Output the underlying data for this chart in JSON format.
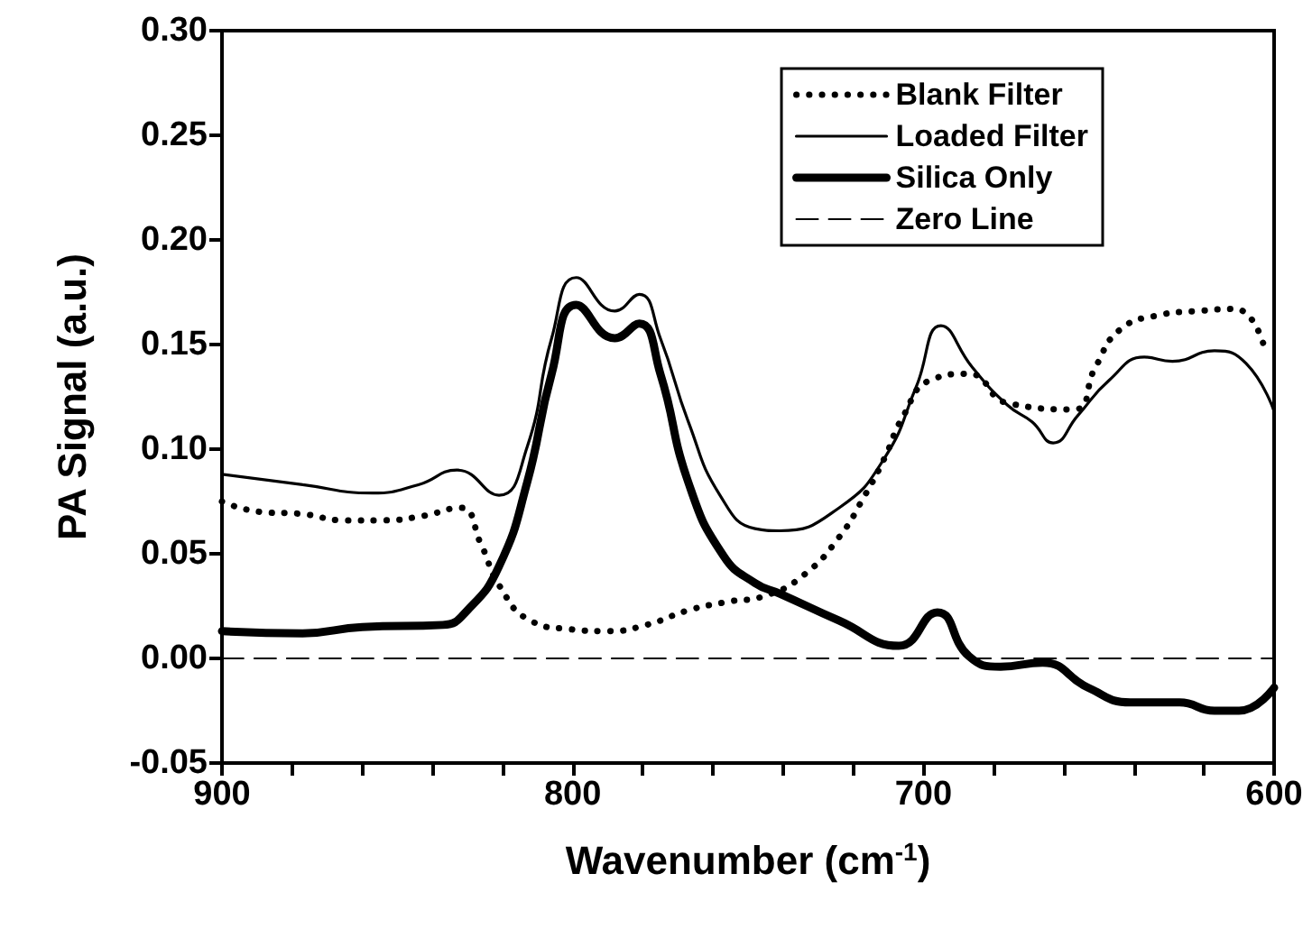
{
  "chart_data": {
    "type": "line",
    "xlabel": "Wavenumber (cm$^{-1}$)",
    "ylabel": "PA Signal (a.u.)",
    "xlim": [
      900,
      600
    ],
    "ylim": [
      -0.05,
      0.3
    ],
    "xticks": [
      900,
      {
        "value": 880,
        "label": null
      },
      {
        "value": 860,
        "label": null
      },
      {
        "value": 840,
        "label": null
      },
      {
        "value": 820,
        "label": null
      },
      800,
      {
        "value": 780,
        "label": null
      },
      {
        "value": 760,
        "label": null
      },
      {
        "value": 740,
        "label": null
      },
      {
        "value": 720,
        "label": null
      },
      700,
      {
        "value": 680,
        "label": null
      },
      {
        "value": 660,
        "label": null
      },
      {
        "value": 640,
        "label": null
      },
      {
        "value": 620,
        "label": null
      },
      600
    ],
    "yticks": [
      {
        "value": -0.05,
        "label": "-0.05"
      },
      {
        "value": 0,
        "label": "0.00"
      },
      {
        "value": 0.05,
        "label": "0.05"
      },
      {
        "value": 0.1,
        "label": "0.10"
      },
      {
        "value": 0.15,
        "label": "0.15"
      },
      {
        "value": 0.2,
        "label": "0.20"
      },
      {
        "value": 0.25,
        "label": "0.25"
      },
      {
        "value": 0.3,
        "label": "0.30"
      }
    ],
    "grid": false,
    "legend": "top right",
    "marker": "none",
    "series": [
      {
        "name": "Blank Filter",
        "color": "#000000",
        "line_style": "dotted",
        "x": [
          900,
          889,
          877,
          865,
          854,
          843,
          832,
          826,
          821,
          812,
          801,
          790,
          779,
          767,
          756,
          745,
          734,
          724,
          717,
          711,
          706,
          698,
          687,
          676,
          657,
          651,
          644,
          633,
          622,
          611,
          603
        ],
        "values": [
          0.075,
          0.07,
          0.069,
          0.066,
          0.066,
          0.068,
          0.072,
          0.054,
          0.035,
          0.018,
          0.014,
          0.013,
          0.016,
          0.023,
          0.027,
          0.03,
          0.04,
          0.058,
          0.077,
          0.096,
          0.115,
          0.133,
          0.136,
          0.122,
          0.119,
          0.139,
          0.157,
          0.164,
          0.166,
          0.167,
          0.15
        ]
      },
      {
        "name": "Loaded Filter",
        "color": "#000000",
        "line_style": "solid",
        "x": [
          900,
          877,
          857,
          844,
          833,
          821,
          813,
          806,
          799,
          788,
          781,
          775,
          767,
          758,
          748,
          741,
          724,
          711,
          702,
          695,
          686,
          676,
          669,
          663,
          656,
          647,
          637,
          629,
          617,
          608,
          600
        ],
        "values": [
          0.088,
          0.083,
          0.079,
          0.083,
          0.09,
          0.078,
          0.101,
          0.153,
          0.182,
          0.166,
          0.174,
          0.153,
          0.113,
          0.078,
          0.062,
          0.061,
          0.072,
          0.096,
          0.13,
          0.159,
          0.139,
          0.121,
          0.113,
          0.103,
          0.116,
          0.133,
          0.144,
          0.142,
          0.147,
          0.141,
          0.118
        ]
      },
      {
        "name": "Silica Only",
        "color": "#000000",
        "line_style": "solid",
        "x": [
          900,
          877,
          860,
          837,
          830,
          821,
          813,
          806,
          799,
          788,
          781,
          775,
          767,
          757,
          748,
          741,
          724,
          707,
          696,
          687,
          678,
          666,
          653,
          641,
          627,
          617,
          610,
          600
        ],
        "values": [
          0.013,
          0.012,
          0.015,
          0.016,
          0.023,
          0.044,
          0.084,
          0.136,
          0.169,
          0.153,
          0.16,
          0.136,
          0.084,
          0.049,
          0.036,
          0.031,
          0.018,
          0.006,
          0.022,
          0.001,
          -0.004,
          -0.002,
          -0.014,
          -0.021,
          -0.021,
          -0.025,
          -0.025,
          -0.014
        ]
      },
      {
        "name": "Zero Line",
        "color": "#000000",
        "line_style": "dashed",
        "x": [
          900,
          600
        ],
        "values": [
          0,
          0
        ]
      }
    ]
  }
}
